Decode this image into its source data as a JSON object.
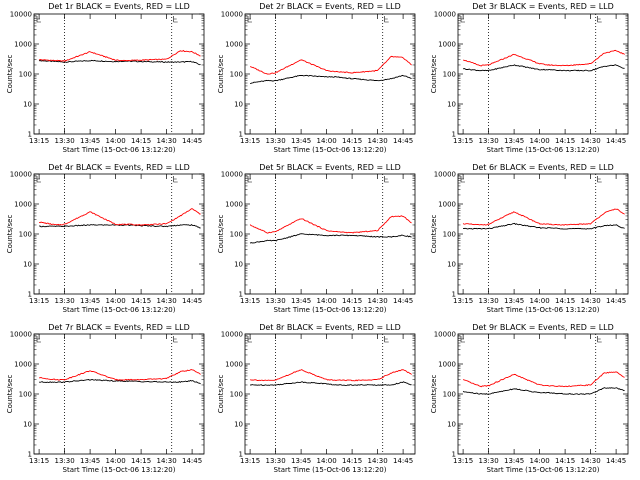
{
  "figure": {
    "title_template": "Det {n}r BLACK = Events, RED = LLD",
    "ylabel": "Counts/sec",
    "xlabel": "Start Time (15-Oct-06 13:12:20)",
    "x_tick_labels": [
      "13:15",
      "13:30",
      "13:45",
      "14:00",
      "14:15",
      "14:30",
      "14:45"
    ],
    "y_tick_labels": [
      "1",
      "10",
      "100",
      "1000",
      "10000"
    ],
    "colors": {
      "events": "#000000",
      "lld": "#ff0000"
    }
  },
  "chart_data": [
    {
      "type": "line",
      "title": "Det 1r BLACK = Events, RED = LLD",
      "detector": "1r",
      "xlabel": "Start Time (15-Oct-06 13:12:20)",
      "ylabel": "Counts/sec",
      "y_log": true,
      "ylim": [
        1,
        10000
      ],
      "xlim": [
        "13:12",
        "14:52"
      ],
      "dotted_vlines": [
        "13:30",
        "14:33"
      ],
      "grid": false,
      "x": [
        "13:15",
        "13:25",
        "13:30",
        "13:45",
        "14:00",
        "14:05",
        "14:15",
        "14:30",
        "14:38",
        "14:45",
        "14:50"
      ],
      "series": [
        {
          "name": "BLACK = Events",
          "values": [
            280,
            260,
            250,
            280,
            260,
            270,
            260,
            250,
            250,
            260,
            200
          ]
        },
        {
          "name": "RED = LLD",
          "values": [
            300,
            280,
            270,
            550,
            290,
            280,
            290,
            310,
            600,
            550,
            400
          ]
        }
      ]
    },
    {
      "type": "line",
      "title": "Det 2r BLACK = Events, RED = LLD",
      "detector": "2r",
      "xlabel": "Start Time (15-Oct-06 13:12:20)",
      "ylabel": "Counts/sec",
      "y_log": true,
      "ylim": [
        1,
        10000
      ],
      "xlim": [
        "13:12",
        "14:52"
      ],
      "dotted_vlines": [
        "13:30",
        "14:33"
      ],
      "grid": false,
      "x": [
        "13:15",
        "13:25",
        "13:30",
        "13:45",
        "14:00",
        "14:05",
        "14:15",
        "14:30",
        "14:38",
        "14:45",
        "14:50"
      ],
      "series": [
        {
          "name": "BLACK = Events",
          "values": [
            50,
            60,
            60,
            90,
            80,
            80,
            70,
            60,
            70,
            90,
            70
          ]
        },
        {
          "name": "RED = LLD",
          "values": [
            180,
            100,
            110,
            300,
            130,
            120,
            110,
            130,
            380,
            350,
            200
          ]
        }
      ]
    },
    {
      "type": "line",
      "title": "Det 3r BLACK = Events, RED = LLD",
      "detector": "3r",
      "xlabel": "Start Time (15-Oct-06 13:12:20)",
      "ylabel": "Counts/sec",
      "y_log": true,
      "ylim": [
        1,
        10000
      ],
      "xlim": [
        "13:12",
        "14:52"
      ],
      "dotted_vlines": [
        "13:30",
        "14:33"
      ],
      "grid": false,
      "x": [
        "13:15",
        "13:25",
        "13:30",
        "13:45",
        "14:00",
        "14:05",
        "14:15",
        "14:30",
        "14:38",
        "14:45",
        "14:50"
      ],
      "series": [
        {
          "name": "BLACK = Events",
          "values": [
            150,
            130,
            130,
            200,
            140,
            140,
            130,
            130,
            180,
            200,
            150
          ]
        },
        {
          "name": "RED = LLD",
          "values": [
            300,
            190,
            200,
            450,
            220,
            200,
            190,
            220,
            500,
            600,
            450
          ]
        }
      ]
    },
    {
      "type": "line",
      "title": "Det 4r BLACK = Events, RED = LLD",
      "detector": "4r",
      "xlabel": "Start Time (15-Oct-06 13:12:20)",
      "ylabel": "Counts/sec",
      "y_log": true,
      "ylim": [
        1,
        10000
      ],
      "xlim": [
        "13:12",
        "14:52"
      ],
      "dotted_vlines": [
        "13:30",
        "14:33"
      ],
      "grid": false,
      "x": [
        "13:15",
        "13:25",
        "13:30",
        "13:45",
        "14:00",
        "14:05",
        "14:15",
        "14:30",
        "14:38",
        "14:45",
        "14:50"
      ],
      "series": [
        {
          "name": "BLACK = Events",
          "values": [
            180,
            180,
            180,
            200,
            200,
            200,
            190,
            180,
            200,
            200,
            160
          ]
        },
        {
          "name": "RED = LLD",
          "values": [
            250,
            200,
            210,
            550,
            210,
            210,
            200,
            220,
            400,
            700,
            450
          ]
        }
      ]
    },
    {
      "type": "line",
      "title": "Det 5r BLACK = Events, RED = LLD",
      "detector": "5r",
      "xlabel": "Start Time (15-Oct-06 13:12:20)",
      "ylabel": "Counts/sec",
      "y_log": true,
      "ylim": [
        1,
        10000
      ],
      "xlim": [
        "13:12",
        "14:52"
      ],
      "dotted_vlines": [
        "13:30",
        "14:33"
      ],
      "grid": false,
      "x": [
        "13:15",
        "13:25",
        "13:30",
        "13:45",
        "14:00",
        "14:05",
        "14:15",
        "14:30",
        "14:38",
        "14:45",
        "14:50"
      ],
      "series": [
        {
          "name": "BLACK = Events",
          "values": [
            50,
            60,
            60,
            100,
            90,
            90,
            90,
            80,
            80,
            90,
            80
          ]
        },
        {
          "name": "RED = LLD",
          "values": [
            200,
            110,
            120,
            330,
            130,
            120,
            110,
            130,
            380,
            400,
            230
          ]
        }
      ]
    },
    {
      "type": "line",
      "title": "Det 6r BLACK = Events, RED = LLD",
      "detector": "6r",
      "xlabel": "Start Time (15-Oct-06 13:12:20)",
      "ylabel": "Counts/sec",
      "y_log": true,
      "ylim": [
        1,
        10000
      ],
      "xlim": [
        "13:12",
        "14:52"
      ],
      "dotted_vlines": [
        "13:30",
        "14:33"
      ],
      "grid": false,
      "x": [
        "13:15",
        "13:25",
        "13:30",
        "13:45",
        "14:00",
        "14:05",
        "14:15",
        "14:30",
        "14:38",
        "14:45",
        "14:50"
      ],
      "series": [
        {
          "name": "BLACK = Events",
          "values": [
            150,
            150,
            150,
            220,
            160,
            160,
            150,
            150,
            190,
            200,
            150
          ]
        },
        {
          "name": "RED = LLD",
          "values": [
            220,
            200,
            210,
            550,
            220,
            210,
            200,
            220,
            500,
            700,
            450
          ]
        }
      ]
    },
    {
      "type": "line",
      "title": "Det 7r BLACK = Events, RED = LLD",
      "detector": "7r",
      "xlabel": "Start Time (15-Oct-06 13:12:20)",
      "ylabel": "Counts/sec",
      "y_log": true,
      "ylim": [
        1,
        10000
      ],
      "xlim": [
        "13:12",
        "14:52"
      ],
      "dotted_vlines": [
        "13:30",
        "14:33"
      ],
      "grid": false,
      "x": [
        "13:15",
        "13:25",
        "13:30",
        "13:45",
        "14:00",
        "14:05",
        "14:15",
        "14:30",
        "14:38",
        "14:45",
        "14:50"
      ],
      "series": [
        {
          "name": "BLACK = Events",
          "values": [
            250,
            250,
            250,
            300,
            270,
            270,
            260,
            250,
            250,
            280,
            220
          ]
        },
        {
          "name": "RED = LLD",
          "values": [
            350,
            300,
            300,
            600,
            300,
            300,
            300,
            330,
            550,
            650,
            450
          ]
        }
      ]
    },
    {
      "type": "line",
      "title": "Det 8r BLACK = Events, RED = LLD",
      "detector": "8r",
      "xlabel": "Start Time (15-Oct-06 13:12:20)",
      "ylabel": "Counts/sec",
      "y_log": true,
      "ylim": [
        1,
        10000
      ],
      "xlim": [
        "13:12",
        "14:52"
      ],
      "dotted_vlines": [
        "13:30",
        "14:33"
      ],
      "grid": false,
      "x": [
        "13:15",
        "13:25",
        "13:30",
        "13:45",
        "14:00",
        "14:05",
        "14:15",
        "14:30",
        "14:38",
        "14:45",
        "14:50"
      ],
      "series": [
        {
          "name": "BLACK = Events",
          "values": [
            200,
            200,
            200,
            250,
            220,
            200,
            200,
            200,
            200,
            250,
            200
          ]
        },
        {
          "name": "RED = LLD",
          "values": [
            300,
            280,
            290,
            650,
            300,
            290,
            280,
            300,
            500,
            650,
            450
          ]
        }
      ]
    },
    {
      "type": "line",
      "title": "Det 9r BLACK = Events, RED = LLD",
      "detector": "9r",
      "xlabel": "Start Time (15-Oct-06 13:12:20)",
      "ylabel": "Counts/sec",
      "y_log": true,
      "ylim": [
        1,
        10000
      ],
      "xlim": [
        "13:12",
        "14:52"
      ],
      "dotted_vlines": [
        "13:30",
        "14:33"
      ],
      "grid": false,
      "x": [
        "13:15",
        "13:25",
        "13:30",
        "13:45",
        "14:00",
        "14:05",
        "14:15",
        "14:30",
        "14:38",
        "14:45",
        "14:50"
      ],
      "series": [
        {
          "name": "BLACK = Events",
          "values": [
            120,
            100,
            100,
            150,
            110,
            110,
            100,
            100,
            160,
            160,
            130
          ]
        },
        {
          "name": "RED = LLD",
          "values": [
            300,
            180,
            190,
            450,
            200,
            190,
            180,
            200,
            500,
            550,
            350
          ]
        }
      ]
    }
  ]
}
